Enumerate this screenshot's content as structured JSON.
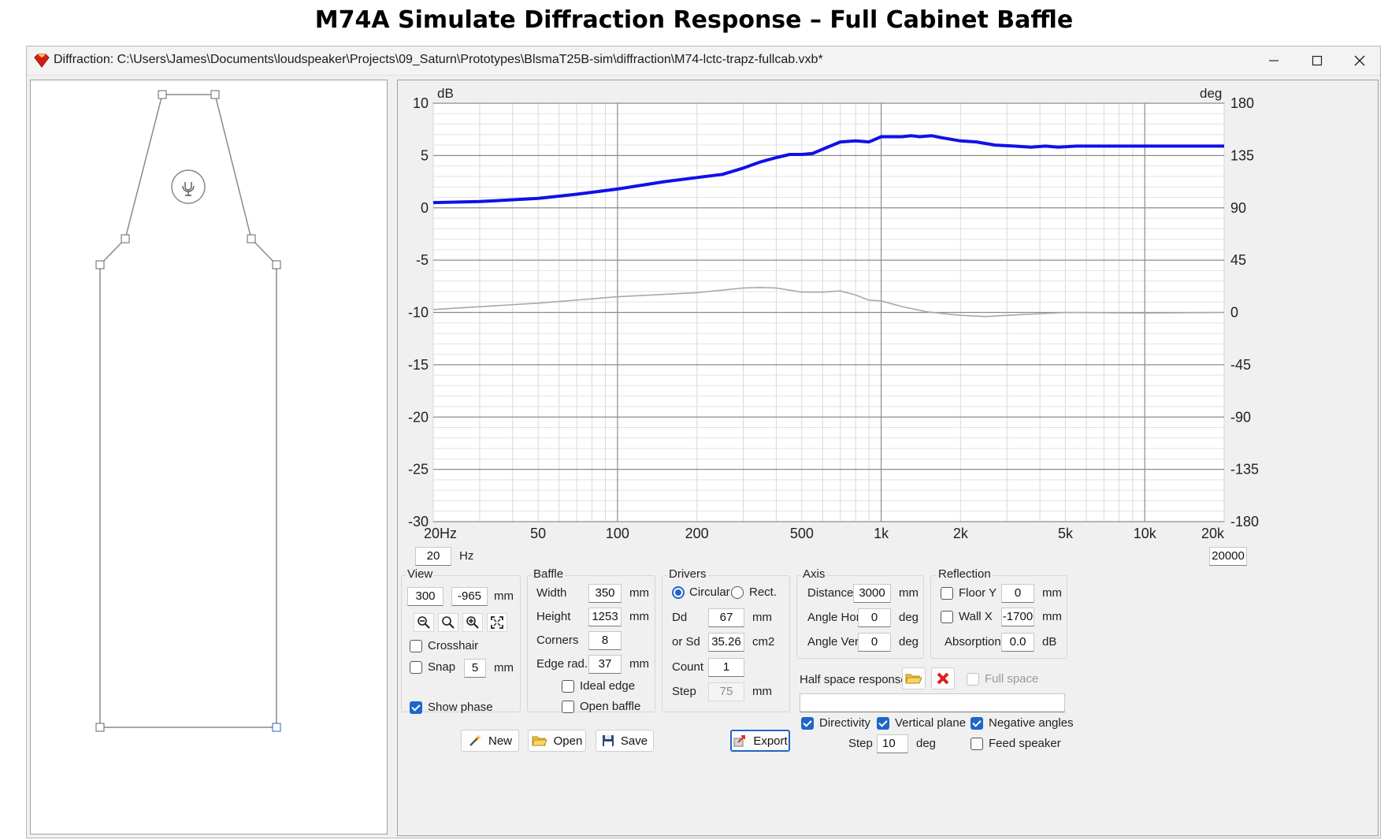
{
  "page_title": "M74A Simulate Diffraction Response – Full Cabinet Baffle",
  "window": {
    "title": "Diffraction: C:\\Users\\James\\Documents\\loudspeaker\\Projects\\09_Saturn\\Prototypes\\BlsmaT25B-sim\\diffraction\\M74-lctc-trapz-fullcab.vxb*",
    "app_icon": "diamond-app-icon",
    "controls": [
      "minimize",
      "maximize",
      "close"
    ]
  },
  "chart_data": {
    "type": "line",
    "x_scale": "log",
    "xlim": [
      20,
      20000
    ],
    "ylim": [
      -30,
      10
    ],
    "y2lim": [
      -180,
      180
    ],
    "ylabel": "dB",
    "y2label": "deg",
    "x_ticks": [
      {
        "value": 20,
        "label": "20Hz"
      },
      {
        "value": 50,
        "label": "50"
      },
      {
        "value": 100,
        "label": "100"
      },
      {
        "value": 200,
        "label": "200"
      },
      {
        "value": 500,
        "label": "500"
      },
      {
        "value": 1000,
        "label": "1k"
      },
      {
        "value": 2000,
        "label": "2k"
      },
      {
        "value": 5000,
        "label": "5k"
      },
      {
        "value": 10000,
        "label": "10k"
      },
      {
        "value": 20000,
        "label": "20k"
      }
    ],
    "y_ticks": [
      10,
      5,
      0,
      -5,
      -10,
      -15,
      -20,
      -25,
      -30
    ],
    "y2_ticks": [
      180,
      135,
      90,
      45,
      0,
      -45,
      -90,
      -135,
      -180
    ],
    "grid": true,
    "series": [
      {
        "axis": "left",
        "color": "#1010e8",
        "points": [
          [
            20,
            0.5
          ],
          [
            30,
            0.6
          ],
          [
            50,
            0.9
          ],
          [
            70,
            1.3
          ],
          [
            100,
            1.8
          ],
          [
            150,
            2.5
          ],
          [
            200,
            2.9
          ],
          [
            250,
            3.2
          ],
          [
            300,
            3.8
          ],
          [
            350,
            4.4
          ],
          [
            400,
            4.8
          ],
          [
            450,
            5.1
          ],
          [
            500,
            5.1
          ],
          [
            550,
            5.2
          ],
          [
            600,
            5.6
          ],
          [
            700,
            6.3
          ],
          [
            800,
            6.4
          ],
          [
            900,
            6.3
          ],
          [
            1000,
            6.8
          ],
          [
            1100,
            6.8
          ],
          [
            1200,
            6.8
          ],
          [
            1300,
            6.9
          ],
          [
            1400,
            6.8
          ],
          [
            1550,
            6.9
          ],
          [
            1700,
            6.7
          ],
          [
            2000,
            6.4
          ],
          [
            2300,
            6.3
          ],
          [
            2700,
            6.0
          ],
          [
            3200,
            5.9
          ],
          [
            3700,
            5.8
          ],
          [
            4200,
            5.9
          ],
          [
            4700,
            5.8
          ],
          [
            5500,
            5.9
          ],
          [
            7000,
            5.9
          ],
          [
            10000,
            5.9
          ],
          [
            15000,
            5.9
          ],
          [
            20000,
            5.9
          ]
        ]
      },
      {
        "axis": "right",
        "color": "#a8a8a8",
        "points": [
          [
            20,
            2.5
          ],
          [
            50,
            8
          ],
          [
            100,
            13.5
          ],
          [
            200,
            17
          ],
          [
            300,
            21
          ],
          [
            350,
            21.5
          ],
          [
            400,
            21
          ],
          [
            500,
            17.5
          ],
          [
            600,
            17.5
          ],
          [
            700,
            18.5
          ],
          [
            800,
            15
          ],
          [
            900,
            10.5
          ],
          [
            1000,
            10
          ],
          [
            1200,
            5
          ],
          [
            1500,
            0.5
          ],
          [
            2000,
            -2.5
          ],
          [
            2500,
            -3.5
          ],
          [
            3000,
            -2.5
          ],
          [
            5000,
            0
          ],
          [
            10000,
            -0.5
          ],
          [
            20000,
            0
          ]
        ]
      }
    ]
  },
  "range": {
    "min": "20",
    "min_unit": "Hz",
    "max": "20000"
  },
  "view": {
    "label": "View",
    "x": "300",
    "y": "-965",
    "unit": "mm",
    "tools": [
      "zoom-out-icon",
      "zoom-icon",
      "zoom-in-icon",
      "fit-icon"
    ],
    "crosshair": {
      "label": "Crosshair",
      "checked": false
    },
    "snap": {
      "label": "Snap",
      "value": "5",
      "unit": "mm",
      "checked": false
    },
    "show_phase": {
      "label": "Show phase",
      "checked": true
    }
  },
  "baffle": {
    "label": "Baffle",
    "width": {
      "label": "Width",
      "value": "350",
      "unit": "mm"
    },
    "height": {
      "label": "Height",
      "value": "1253",
      "unit": "mm"
    },
    "corners": {
      "label": "Corners",
      "value": "8"
    },
    "edge_rad": {
      "label": "Edge rad.",
      "value": "37",
      "unit": "mm"
    },
    "ideal_edge": {
      "label": "Ideal edge",
      "checked": false
    },
    "open_baffle": {
      "label": "Open baffle",
      "checked": false
    }
  },
  "drivers": {
    "label": "Drivers",
    "circular": {
      "label": "Circular",
      "checked": true
    },
    "rect": {
      "label": "Rect.",
      "checked": false
    },
    "dd": {
      "label": "Dd",
      "value": "67",
      "unit": "mm"
    },
    "sd": {
      "label": "or Sd",
      "value": "35.26",
      "unit": "cm2"
    },
    "count": {
      "label": "Count",
      "value": "1"
    },
    "step": {
      "label": "Step",
      "value": "75",
      "unit": "mm"
    }
  },
  "axis": {
    "label": "Axis",
    "distance": {
      "label": "Distance",
      "value": "3000",
      "unit": "mm"
    },
    "angle_hor": {
      "label": "Angle Hor",
      "value": "0",
      "unit": "deg"
    },
    "angle_ver": {
      "label": "Angle Ver",
      "value": "0",
      "unit": "deg"
    }
  },
  "reflection": {
    "label": "Reflection",
    "floor": {
      "label": "Floor Y",
      "value": "0",
      "unit": "mm",
      "checked": false
    },
    "wall": {
      "label": "Wall  X",
      "value": "-1700",
      "unit": "mm",
      "checked": false
    },
    "absorption": {
      "label": "Absorption",
      "value": "0.0",
      "unit": "dB"
    }
  },
  "half_space": {
    "label": "Half space response",
    "full_space": {
      "label": "Full space",
      "checked": false
    },
    "path": ""
  },
  "directivity": {
    "directivity": {
      "label": "Directivity",
      "checked": true
    },
    "vertical_plane": {
      "label": "Vertical plane",
      "checked": true
    },
    "negative_angles": {
      "label": "Negative angles",
      "checked": true
    },
    "feed_speaker": {
      "label": "Feed speaker",
      "checked": false
    },
    "step": {
      "label": "Step",
      "value": "10",
      "unit": "deg"
    }
  },
  "buttons": {
    "new": "New",
    "open": "Open",
    "save": "Save",
    "export": "Export"
  },
  "colors": {
    "accent": "#1f66c9",
    "magnitude": "#1010e8",
    "phase": "#a8a8a8",
    "delete": "#e01e1e",
    "folder": "#f1c232"
  }
}
